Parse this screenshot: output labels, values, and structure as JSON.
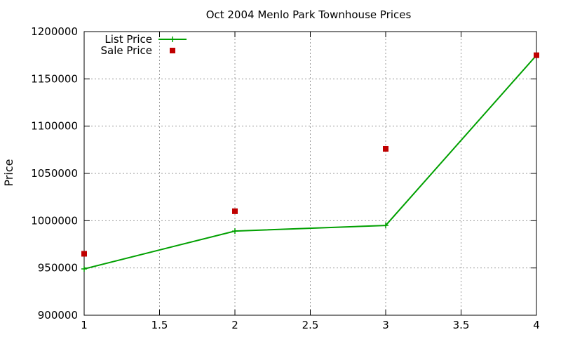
{
  "chart_data": {
    "type": "line",
    "title": "Oct 2004 Menlo Park Townhouse Prices",
    "xlabel": "",
    "ylabel": "Price",
    "xlim": [
      1,
      4
    ],
    "ylim": [
      900000,
      1200000
    ],
    "xticks": [
      1,
      1.5,
      2,
      2.5,
      3,
      3.5,
      4
    ],
    "xtick_labels": [
      "1",
      "1.5",
      "2",
      "2.5",
      "3",
      "3.5",
      "4"
    ],
    "yticks": [
      900000,
      950000,
      1000000,
      1050000,
      1100000,
      1150000,
      1200000
    ],
    "ytick_labels": [
      "900000",
      "950000",
      "1000000",
      "1050000",
      "1100000",
      "1150000",
      "1200000"
    ],
    "grid": true,
    "legend_position": "top-left",
    "series": [
      {
        "name": "List Price",
        "type": "linespoints",
        "color": "#00a000",
        "x": [
          1,
          2,
          3,
          4
        ],
        "y": [
          949000,
          989000,
          995000,
          1175000
        ]
      },
      {
        "name": "Sale Price",
        "type": "points",
        "color": "#c00000",
        "x": [
          1,
          2,
          3,
          4
        ],
        "y": [
          965000,
          1010000,
          1076000,
          1175000
        ]
      }
    ]
  }
}
